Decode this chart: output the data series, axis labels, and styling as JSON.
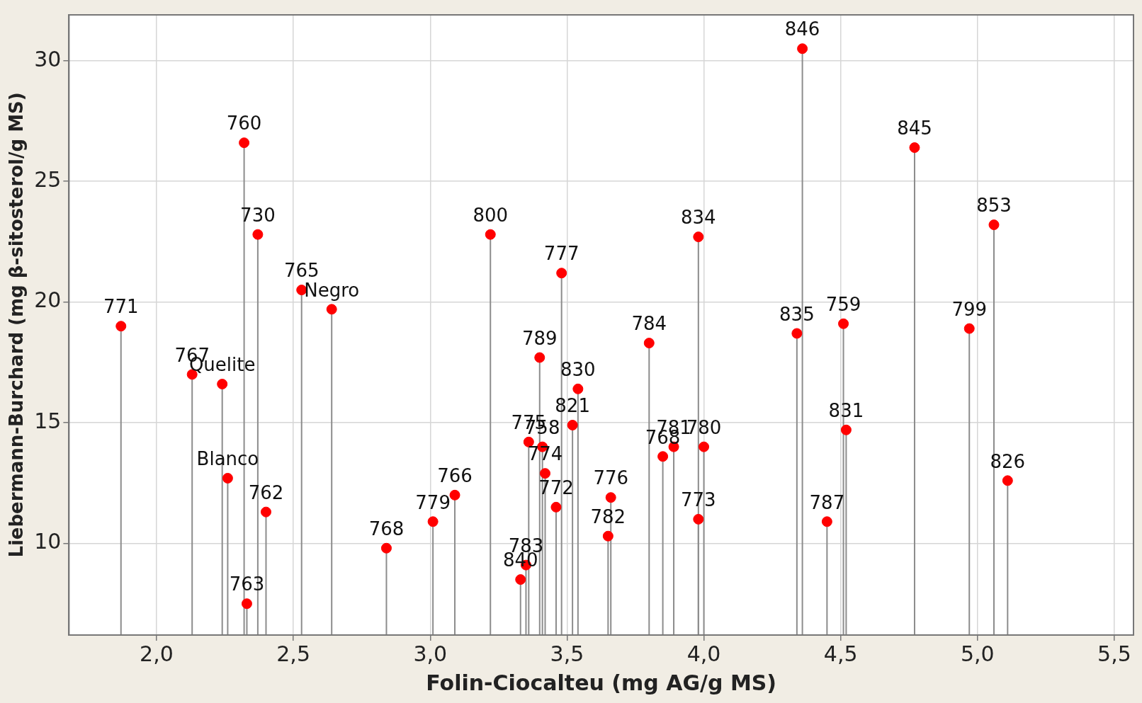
{
  "chart_data": {
    "type": "lollipop",
    "xlabel": "Folin-Ciocalteu (mg AG/g MS)",
    "ylabel": "Liebermann-Burchard (mg β-sitosterol/g MS)",
    "xlim": [
      1.68,
      5.57
    ],
    "ylim": [
      6.2,
      31.9
    ],
    "xticks": [
      {
        "value": 2,
        "label": "2,0"
      },
      {
        "value": 2.5,
        "label": "2,5"
      },
      {
        "value": 3,
        "label": "3,0"
      },
      {
        "value": 3.5,
        "label": "3,5"
      },
      {
        "value": 4,
        "label": "4,0"
      },
      {
        "value": 4.5,
        "label": "4,5"
      },
      {
        "value": 5,
        "label": "5,0"
      },
      {
        "value": 5.5,
        "label": "5,5"
      }
    ],
    "yticks": [
      10,
      15,
      20,
      25,
      30
    ],
    "grid": true,
    "legend": false,
    "marker": "circle",
    "series": [
      {
        "color": "#ff0000",
        "x": [
          1.87,
          2.13,
          2.24,
          2.32,
          2.37,
          2.26,
          2.4,
          2.33,
          2.53,
          2.64,
          2.84,
          3.01,
          3.09,
          3.22,
          3.33,
          3.35,
          3.36,
          3.41,
          3.4,
          3.48,
          3.46,
          3.42,
          3.54,
          3.52,
          3.66,
          3.65,
          3.8,
          3.85,
          3.89,
          4.0,
          3.98,
          3.98,
          4.34,
          4.36,
          4.45,
          4.51,
          4.52,
          4.77,
          4.97,
          5.06,
          5.11
        ],
        "values": [
          19.0,
          17.0,
          16.6,
          26.6,
          22.8,
          12.7,
          11.3,
          7.5,
          20.5,
          19.7,
          9.8,
          10.9,
          12.0,
          22.8,
          8.5,
          9.1,
          14.2,
          14.0,
          17.7,
          21.2,
          11.5,
          12.9,
          16.4,
          14.9,
          11.9,
          10.3,
          18.3,
          13.6,
          14.0,
          14.0,
          22.7,
          11.0,
          18.7,
          30.5,
          10.9,
          19.1,
          14.7,
          26.4,
          18.9,
          23.2,
          12.6
        ]
      }
    ],
    "annotations": [
      {
        "text": "771",
        "x": 1.87,
        "y": 19.0
      },
      {
        "text": "767",
        "x": 2.13,
        "y": 17.0
      },
      {
        "text": "Quelite",
        "x": 2.24,
        "y": 16.6
      },
      {
        "text": "760",
        "x": 2.32,
        "y": 26.6
      },
      {
        "text": "730",
        "x": 2.37,
        "y": 22.8
      },
      {
        "text": "Blanco",
        "x": 2.26,
        "y": 12.7
      },
      {
        "text": "762",
        "x": 2.4,
        "y": 11.3
      },
      {
        "text": "763",
        "x": 2.33,
        "y": 7.5
      },
      {
        "text": "765",
        "x": 2.53,
        "y": 20.5
      },
      {
        "text": "Negro",
        "x": 2.64,
        "y": 19.7
      },
      {
        "text": "768",
        "x": 2.84,
        "y": 9.8
      },
      {
        "text": "779",
        "x": 3.01,
        "y": 10.9
      },
      {
        "text": "766",
        "x": 3.09,
        "y": 12.0
      },
      {
        "text": "800",
        "x": 3.22,
        "y": 22.8
      },
      {
        "text": "840",
        "x": 3.33,
        "y": 8.5
      },
      {
        "text": "783",
        "x": 3.35,
        "y": 9.1
      },
      {
        "text": "775",
        "x": 3.36,
        "y": 14.2
      },
      {
        "text": "758",
        "x": 3.41,
        "y": 14.0
      },
      {
        "text": "789",
        "x": 3.4,
        "y": 17.7
      },
      {
        "text": "777",
        "x": 3.48,
        "y": 21.2
      },
      {
        "text": "772",
        "x": 3.46,
        "y": 11.5
      },
      {
        "text": "774",
        "x": 3.42,
        "y": 12.9
      },
      {
        "text": "830",
        "x": 3.54,
        "y": 16.4
      },
      {
        "text": "821",
        "x": 3.52,
        "y": 14.9
      },
      {
        "text": "776",
        "x": 3.66,
        "y": 11.9
      },
      {
        "text": "782",
        "x": 3.65,
        "y": 10.3
      },
      {
        "text": "784",
        "x": 3.8,
        "y": 18.3
      },
      {
        "text": "768",
        "x": 3.85,
        "y": 13.6
      },
      {
        "text": "781",
        "x": 3.89,
        "y": 14.0
      },
      {
        "text": "780",
        "x": 4.0,
        "y": 14.0
      },
      {
        "text": "834",
        "x": 3.98,
        "y": 22.7
      },
      {
        "text": "773",
        "x": 3.98,
        "y": 11.0
      },
      {
        "text": "835",
        "x": 4.34,
        "y": 18.7
      },
      {
        "text": "846",
        "x": 4.36,
        "y": 30.5
      },
      {
        "text": "787",
        "x": 4.45,
        "y": 10.9
      },
      {
        "text": "759",
        "x": 4.51,
        "y": 19.1
      },
      {
        "text": "831",
        "x": 4.52,
        "y": 14.7
      },
      {
        "text": "845",
        "x": 4.77,
        "y": 26.4
      },
      {
        "text": "799",
        "x": 4.97,
        "y": 18.9
      },
      {
        "text": "853",
        "x": 5.06,
        "y": 23.2
      },
      {
        "text": "826",
        "x": 5.11,
        "y": 12.6
      }
    ]
  }
}
